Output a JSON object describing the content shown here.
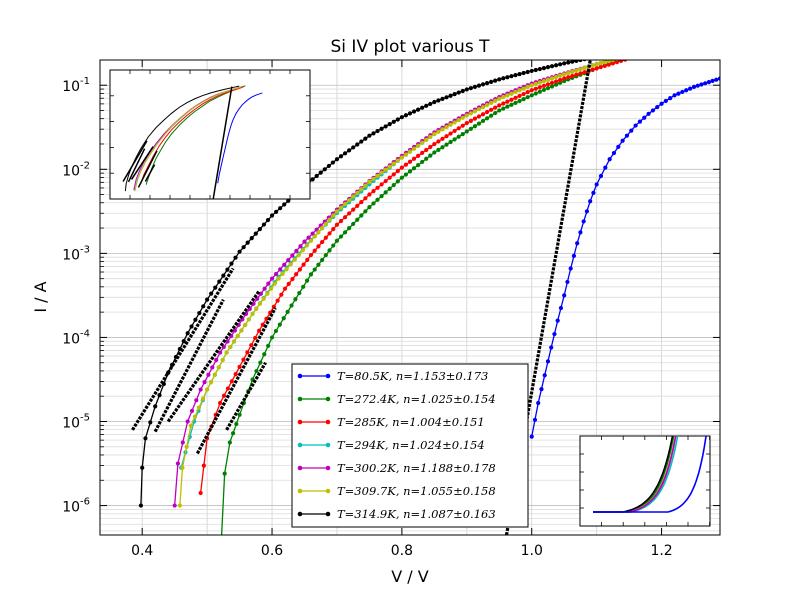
{
  "chart_data": {
    "type": "line",
    "title": "Si IV plot various T",
    "xlabel": "V / V",
    "ylabel": "I / A",
    "xlim": [
      0.335,
      1.29
    ],
    "ylim_log10": [
      -6.35,
      -0.7
    ],
    "y_scale": "log",
    "grid": true,
    "legend_position": "lower-center",
    "x_ticks": [
      {
        "value": 0.4,
        "label": "0.4"
      },
      {
        "value": 0.6,
        "label": "0.6"
      },
      {
        "value": 0.8,
        "label": "0.8"
      },
      {
        "value": 1.0,
        "label": "1.0"
      },
      {
        "value": 1.2,
        "label": "1.2"
      }
    ],
    "y_ticks": [
      {
        "exp": -6,
        "label": "10",
        "sup": "-6"
      },
      {
        "exp": -5,
        "label": "10",
        "sup": "-5"
      },
      {
        "exp": -4,
        "label": "10",
        "sup": "-4"
      },
      {
        "exp": -3,
        "label": "10",
        "sup": "-3"
      },
      {
        "exp": -2,
        "label": "10",
        "sup": "-2"
      },
      {
        "exp": -1,
        "label": "10",
        "sup": "-1"
      }
    ],
    "series": [
      {
        "name": "T = 80.5K, n = 1.153 ± 0.173",
        "color": "#0000ff",
        "points": [
          [
            1.0,
            -5.18
          ],
          [
            1.01,
            -4.78
          ],
          [
            1.02,
            -4.45
          ],
          [
            1.03,
            -4.12
          ],
          [
            1.04,
            -3.8
          ],
          [
            1.05,
            -3.5
          ],
          [
            1.06,
            -3.18
          ],
          [
            1.07,
            -2.88
          ],
          [
            1.08,
            -2.62
          ],
          [
            1.09,
            -2.38
          ],
          [
            1.1,
            -2.18
          ],
          [
            1.12,
            -1.88
          ],
          [
            1.14,
            -1.66
          ],
          [
            1.16,
            -1.48
          ],
          [
            1.18,
            -1.34
          ],
          [
            1.2,
            -1.22
          ],
          [
            1.22,
            -1.12
          ],
          [
            1.25,
            -1.02
          ],
          [
            1.29,
            -0.92
          ]
        ]
      },
      {
        "name": "T = 272.4K, n = 1.025 ± 0.154",
        "color": "#008000",
        "points": [
          [
            0.522,
            -6.4
          ],
          [
            0.527,
            -5.62
          ],
          [
            0.535,
            -5.25
          ],
          [
            0.55,
            -4.92
          ],
          [
            0.57,
            -4.5
          ],
          [
            0.6,
            -4.0
          ],
          [
            0.63,
            -3.62
          ],
          [
            0.66,
            -3.25
          ],
          [
            0.7,
            -2.85
          ],
          [
            0.75,
            -2.45
          ],
          [
            0.8,
            -2.1
          ],
          [
            0.85,
            -1.8
          ],
          [
            0.9,
            -1.55
          ],
          [
            0.95,
            -1.3
          ],
          [
            1.0,
            -1.12
          ],
          [
            1.05,
            -0.95
          ],
          [
            1.1,
            -0.8
          ],
          [
            1.15,
            -0.66
          ],
          [
            1.18,
            -0.58
          ]
        ]
      },
      {
        "name": "T = 285K, n = 1.004 ± 0.151",
        "color": "#ff0000",
        "points": [
          [
            0.49,
            -5.85
          ],
          [
            0.5,
            -5.2
          ],
          [
            0.52,
            -4.78
          ],
          [
            0.55,
            -4.35
          ],
          [
            0.58,
            -3.92
          ],
          [
            0.62,
            -3.42
          ],
          [
            0.66,
            -3.02
          ],
          [
            0.7,
            -2.66
          ],
          [
            0.75,
            -2.3
          ],
          [
            0.8,
            -1.98
          ],
          [
            0.85,
            -1.7
          ],
          [
            0.9,
            -1.45
          ],
          [
            0.95,
            -1.24
          ],
          [
            1.0,
            -1.06
          ],
          [
            1.05,
            -0.92
          ],
          [
            1.1,
            -0.8
          ],
          [
            1.15,
            -0.68
          ],
          [
            1.17,
            -0.62
          ]
        ]
      },
      {
        "name": "T = 294K, n = 1.024 ± 0.154",
        "color": "#00bfbf",
        "points": [
          [
            0.46,
            -5.55
          ],
          [
            0.48,
            -5.0
          ],
          [
            0.5,
            -4.62
          ],
          [
            0.53,
            -4.18
          ],
          [
            0.57,
            -3.72
          ],
          [
            0.61,
            -3.28
          ],
          [
            0.66,
            -2.84
          ],
          [
            0.7,
            -2.52
          ],
          [
            0.75,
            -2.18
          ],
          [
            0.8,
            -1.86
          ],
          [
            0.85,
            -1.58
          ],
          [
            0.9,
            -1.35
          ],
          [
            0.95,
            -1.16
          ],
          [
            1.0,
            -1.0
          ],
          [
            1.05,
            -0.87
          ],
          [
            1.1,
            -0.75
          ],
          [
            1.15,
            -0.65
          ]
        ]
      },
      {
        "name": "T = 300.2K, n = 1.188 ± 0.178",
        "color": "#bf00bf",
        "points": [
          [
            0.45,
            -6.0
          ],
          [
            0.455,
            -5.5
          ],
          [
            0.47,
            -5.0
          ],
          [
            0.49,
            -4.62
          ],
          [
            0.52,
            -4.18
          ],
          [
            0.56,
            -3.72
          ],
          [
            0.6,
            -3.3
          ],
          [
            0.65,
            -2.86
          ],
          [
            0.7,
            -2.48
          ],
          [
            0.75,
            -2.14
          ],
          [
            0.8,
            -1.84
          ],
          [
            0.85,
            -1.56
          ],
          [
            0.9,
            -1.34
          ],
          [
            0.95,
            -1.14
          ],
          [
            1.0,
            -0.98
          ],
          [
            1.05,
            -0.86
          ],
          [
            1.1,
            -0.75
          ],
          [
            1.15,
            -0.64
          ]
        ]
      },
      {
        "name": "T = 309.7K, n = 1.055 ± 0.158",
        "color": "#bfbf00",
        "points": [
          [
            0.458,
            -6.0
          ],
          [
            0.462,
            -5.55
          ],
          [
            0.475,
            -5.05
          ],
          [
            0.5,
            -4.62
          ],
          [
            0.53,
            -4.18
          ],
          [
            0.57,
            -3.72
          ],
          [
            0.61,
            -3.3
          ],
          [
            0.66,
            -2.85
          ],
          [
            0.7,
            -2.5
          ],
          [
            0.75,
            -2.15
          ],
          [
            0.8,
            -1.86
          ],
          [
            0.85,
            -1.58
          ],
          [
            0.9,
            -1.36
          ],
          [
            0.95,
            -1.16
          ],
          [
            1.0,
            -1.0
          ],
          [
            1.05,
            -0.87
          ],
          [
            1.1,
            -0.75
          ],
          [
            1.15,
            -0.65
          ]
        ]
      },
      {
        "name": "T = 314.9K, n = 1.087 ± 0.163",
        "color": "#000000",
        "points": [
          [
            0.398,
            -6.0
          ],
          [
            0.4,
            -5.55
          ],
          [
            0.405,
            -5.2
          ],
          [
            0.42,
            -4.82
          ],
          [
            0.44,
            -4.42
          ],
          [
            0.47,
            -3.95
          ],
          [
            0.5,
            -3.55
          ],
          [
            0.55,
            -2.98
          ],
          [
            0.6,
            -2.55
          ],
          [
            0.65,
            -2.2
          ],
          [
            0.7,
            -1.88
          ],
          [
            0.75,
            -1.6
          ],
          [
            0.8,
            -1.38
          ],
          [
            0.85,
            -1.2
          ],
          [
            0.9,
            -1.05
          ],
          [
            0.95,
            -0.93
          ],
          [
            1.0,
            -0.83
          ],
          [
            1.05,
            -0.74
          ],
          [
            1.1,
            -0.66
          ],
          [
            1.14,
            -0.6
          ]
        ]
      }
    ],
    "fit_lines": [
      {
        "color": "#000000",
        "points": [
          [
            0.385,
            -5.1
          ],
          [
            0.54,
            -3.18
          ]
        ]
      },
      {
        "color": "#000000",
        "points": [
          [
            0.42,
            -5.12
          ],
          [
            0.525,
            -3.55
          ]
        ]
      },
      {
        "color": "#000000",
        "points": [
          [
            0.44,
            -5.0
          ],
          [
            0.58,
            -3.45
          ]
        ]
      },
      {
        "color": "#000000",
        "points": [
          [
            0.485,
            -5.38
          ],
          [
            0.605,
            -3.65
          ]
        ]
      },
      {
        "color": "#000000",
        "points": [
          [
            0.53,
            -5.1
          ],
          [
            0.59,
            -4.3
          ]
        ]
      },
      {
        "color": "#000000",
        "points": [
          [
            0.96,
            -6.4
          ],
          [
            1.092,
            -0.62
          ]
        ]
      }
    ],
    "legend": [
      {
        "label": "T=80.5K, n=1.153±0.173",
        "color": "#0000ff"
      },
      {
        "label": "T=272.4K, n=1.025±0.154",
        "color": "#008000"
      },
      {
        "label": "T=285K, n=1.004±0.151",
        "color": "#ff0000"
      },
      {
        "label": "T=294K, n=1.024±0.154",
        "color": "#00bfbf"
      },
      {
        "label": "T=300.2K, n=1.188±0.178",
        "color": "#bf00bf"
      },
      {
        "label": "T=309.7K, n=1.055±0.158",
        "color": "#bfbf00"
      },
      {
        "label": "T=314.9K, n=1.087±0.163",
        "color": "#000000"
      }
    ]
  }
}
